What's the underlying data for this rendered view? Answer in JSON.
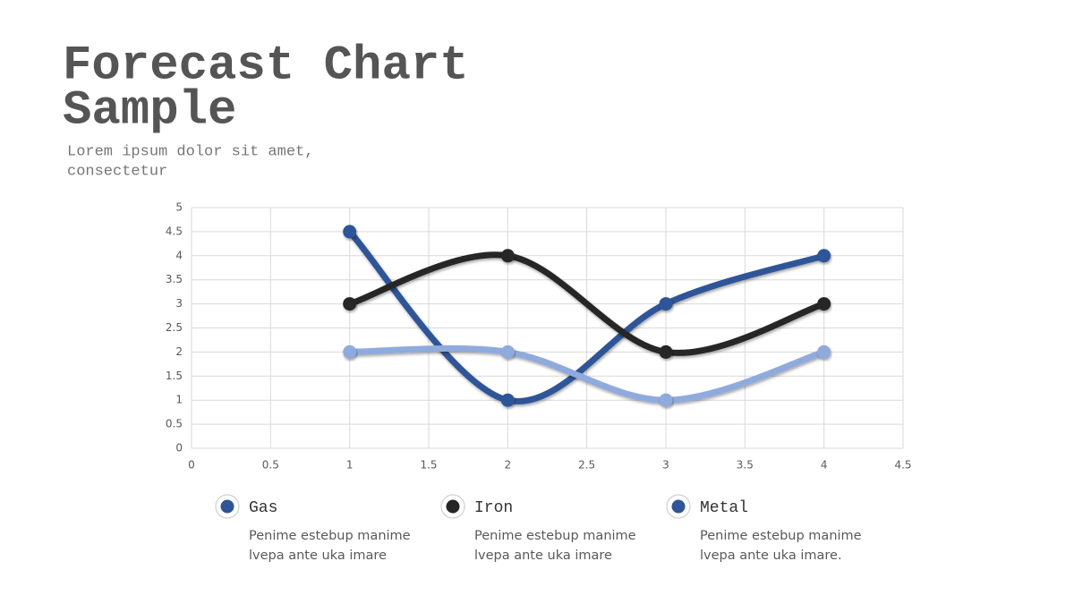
{
  "title_lines": [
    "Forecast Chart",
    "Sample"
  ],
  "subtitle_lines": [
    "Lorem ipsum dolor sit amet,",
    "consectetur"
  ],
  "chart_data": {
    "type": "line",
    "smooth": true,
    "grid": true,
    "xlim": [
      0,
      4.5
    ],
    "xticks": [
      0,
      0.5,
      1,
      1.5,
      2,
      2.5,
      3,
      3.5,
      4,
      4.5
    ],
    "ylim": [
      0,
      5
    ],
    "yticks": [
      0,
      0.5,
      1,
      1.5,
      2,
      2.5,
      3,
      3.5,
      4,
      4.5,
      5
    ],
    "x": [
      1,
      2,
      3,
      4
    ],
    "series": [
      {
        "name": "Gas",
        "color": "#2f5597",
        "legend_color": "#2f5597",
        "values": [
          4.5,
          1,
          3,
          4
        ],
        "description": [
          "Penime estebup manime",
          "lvepa ante uka imare"
        ]
      },
      {
        "name": "Iron",
        "color": "#262626",
        "legend_color": "#262626",
        "values": [
          3,
          4,
          2,
          3
        ],
        "description": [
          "Penime estebup manime",
          "lvepa ante uka imare"
        ]
      },
      {
        "name": "Metal",
        "color": "#8faadc",
        "legend_color": "#2f5597",
        "values": [
          2,
          2,
          1,
          2
        ],
        "description": [
          "Penime estebup manime",
          "lvepa ante uka imare."
        ]
      }
    ]
  }
}
